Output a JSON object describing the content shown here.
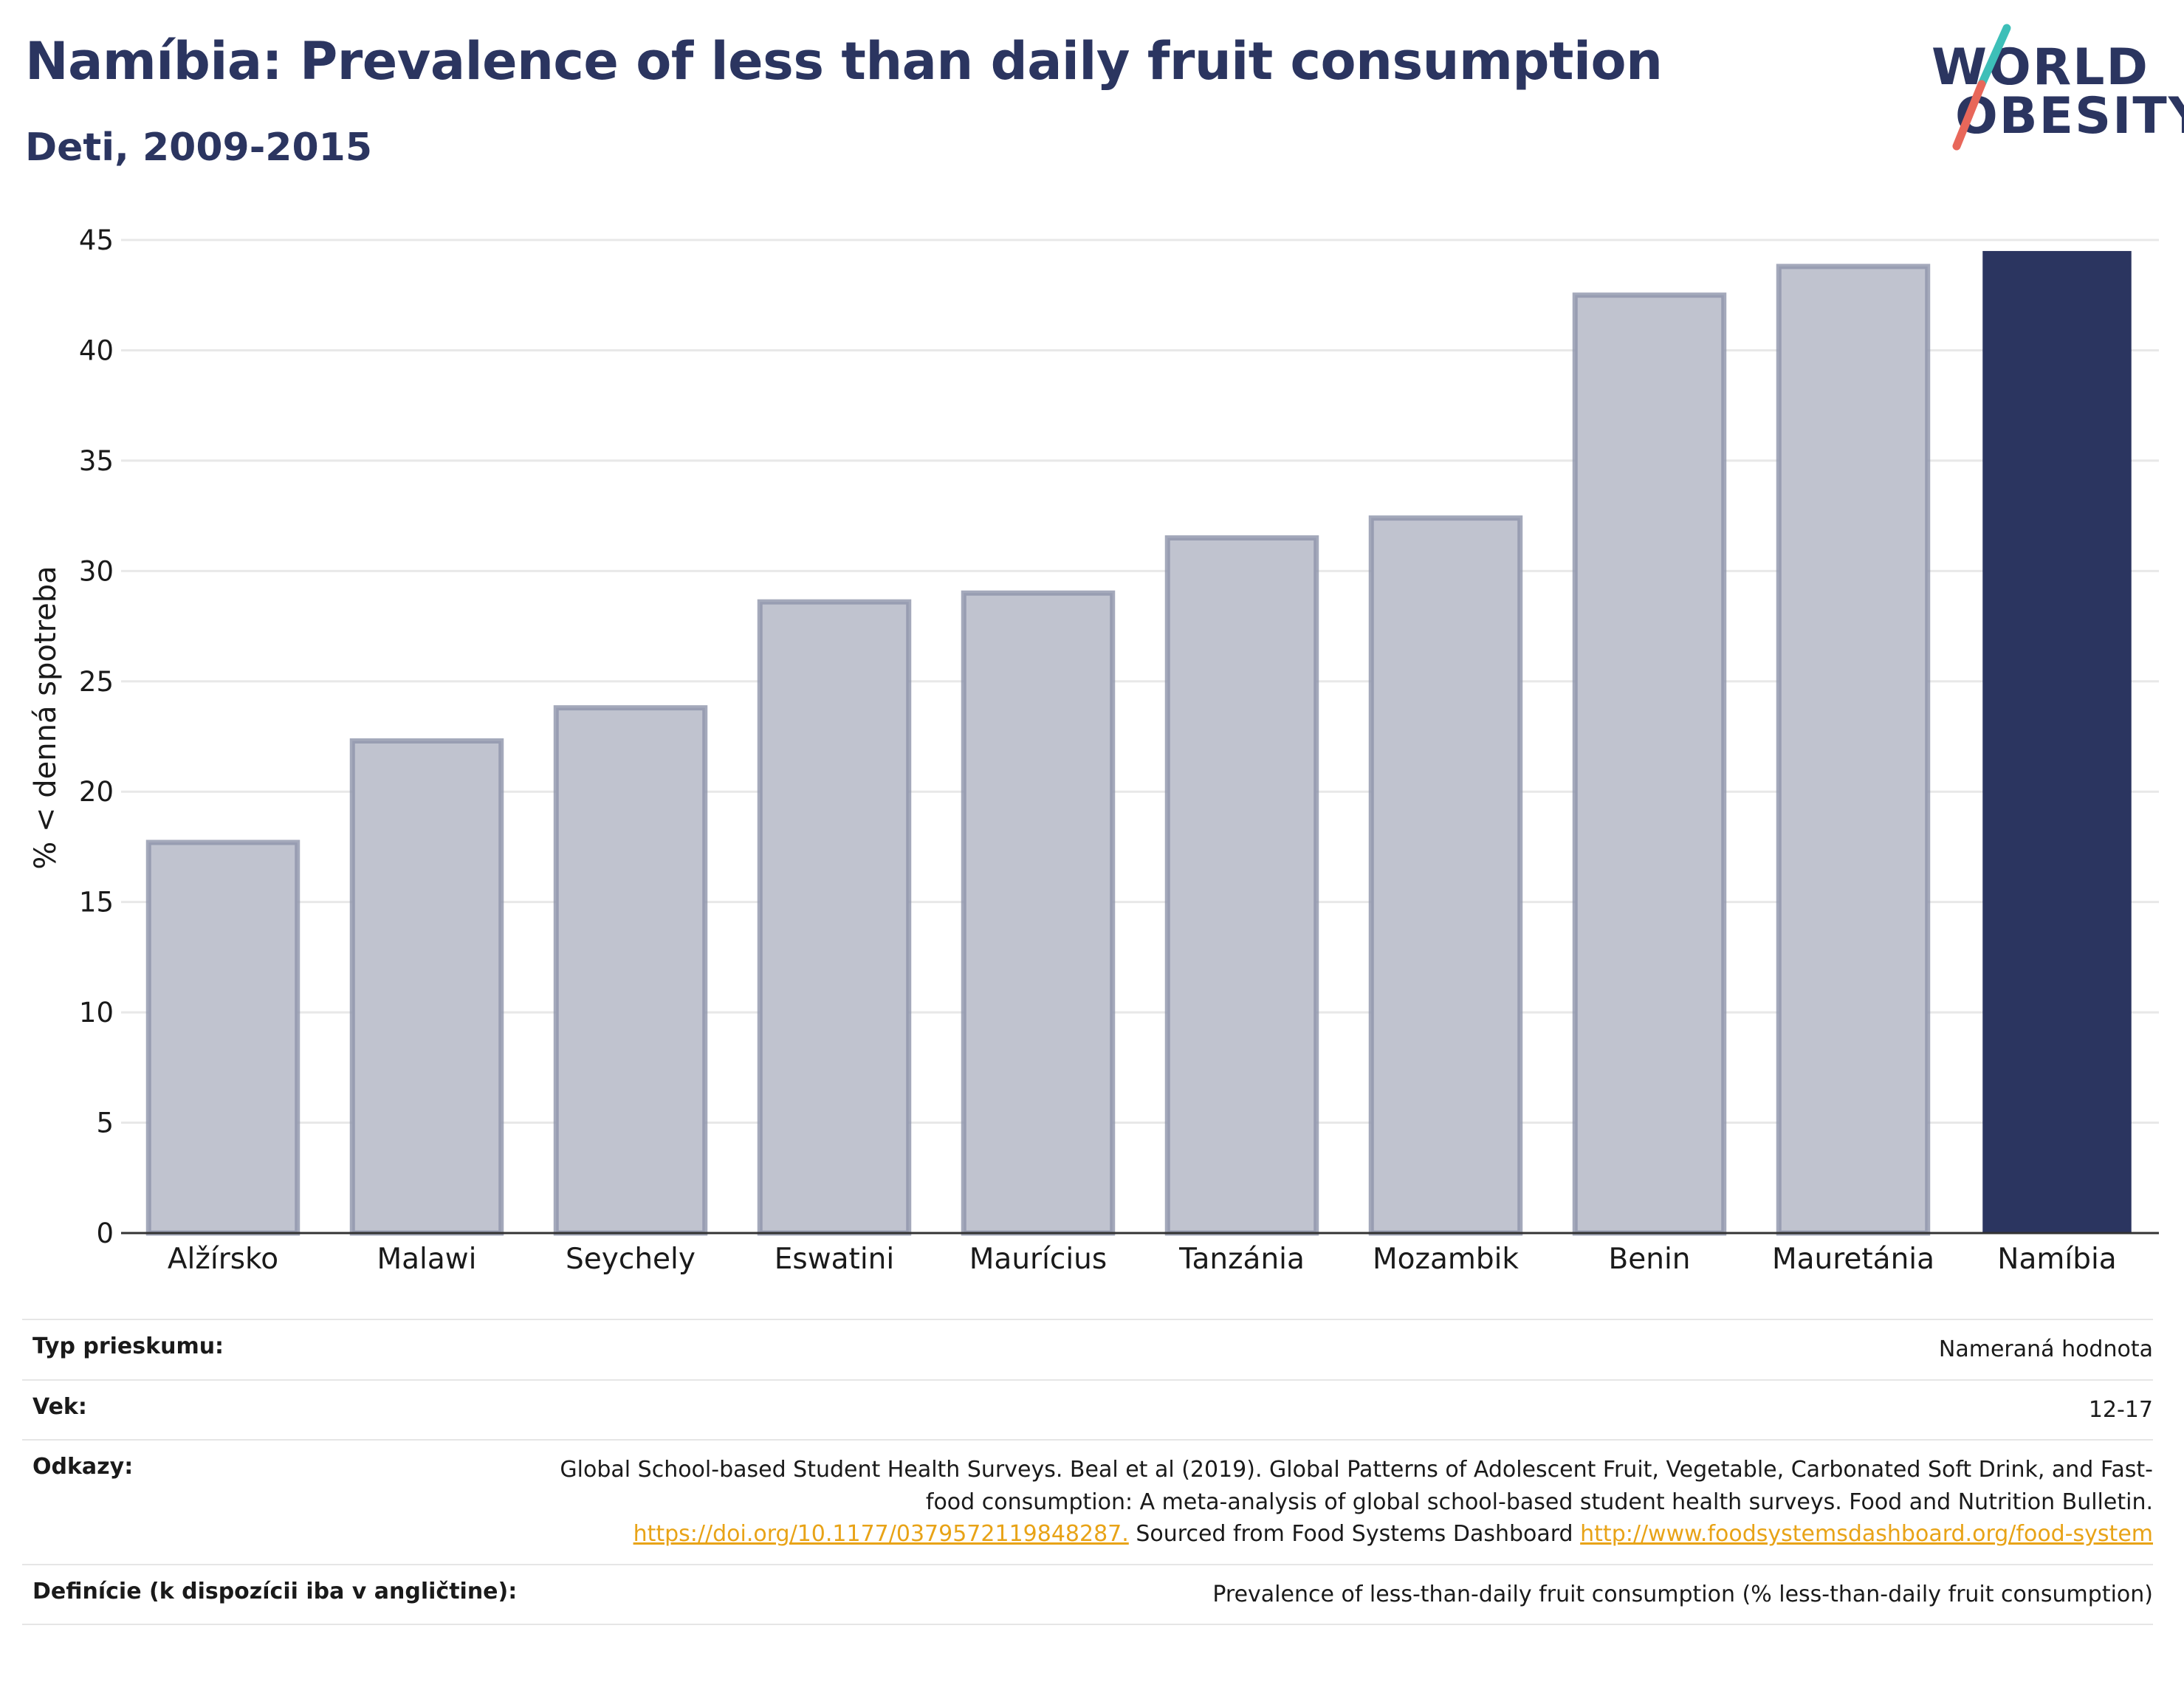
{
  "header": {
    "title": "Namíbia: Prevalence of less than daily fruit consumption",
    "subtitle": "Deti, 2009-2015"
  },
  "logo": {
    "line1": "WORLD",
    "line2": "OBESITY",
    "colors": {
      "text": "#2b3560",
      "slash_top": "#3dbfb8",
      "slash_bottom": "#e8675a"
    }
  },
  "chart_data": {
    "type": "bar",
    "categories": [
      "Alžírsko",
      "Malawi",
      "Seychely",
      "Eswatini",
      "Maurícius",
      "Tanzánia",
      "Mozambik",
      "Benin",
      "Mauretánia",
      "Namíbia"
    ],
    "values": [
      17.7,
      22.3,
      23.8,
      28.6,
      29.0,
      31.5,
      32.4,
      42.5,
      43.8,
      44.5
    ],
    "highlight": "Namíbia",
    "ylabel": "% < denná spotreba",
    "ylim": [
      0,
      45
    ],
    "yticks": [
      0,
      5,
      10,
      15,
      20,
      25,
      30,
      35,
      40,
      45
    ],
    "grid": true,
    "colors": {
      "bar_fill": "#c0c3cf",
      "bar_stroke": "#8d93aa",
      "highlight": "#2b3560",
      "grid": "#e8e8e8",
      "axis": "#333333"
    }
  },
  "info": {
    "survey_label": "Typ prieskumu:",
    "survey_value": "Nameraná hodnota",
    "age_label": "Vek:",
    "age_value": "12-17",
    "refs_label": "Odkazy:",
    "refs_text1": "Global School-based Student Health Surveys. Beal et al (2019). Global Patterns of Adolescent Fruit, Vegetable, Carbonated Soft Drink, and Fast-food consumption: A meta-analysis of global school-based student health surveys. Food and Nutrition Bulletin.",
    "refs_link1": "https://doi.org/10.1177/0379572119848287.",
    "refs_text2": "Sourced from Food Systems Dashboard",
    "refs_link2": "http://www.foodsystemsdashboard.org/food-system",
    "def_label": "Definície (k dispozícii iba v angličtine):",
    "def_value": "Prevalence of less-than-daily fruit consumption (% less-than-daily fruit consumption)",
    "colors": {
      "link": "#e8a317",
      "divider": "#e6e6e6"
    }
  }
}
